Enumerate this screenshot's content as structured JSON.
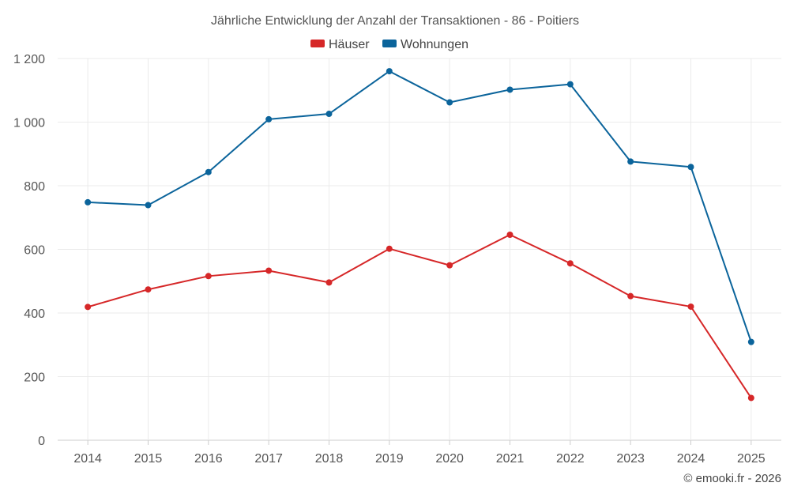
{
  "chart_data": {
    "type": "line",
    "title": "Jährliche Entwicklung der Anzahl der Transaktionen - 86 - Poitiers",
    "xlabel": "",
    "ylabel": "",
    "categories": [
      "2014",
      "2015",
      "2016",
      "2017",
      "2018",
      "2019",
      "2020",
      "2021",
      "2022",
      "2023",
      "2024",
      "2025"
    ],
    "ylim": [
      0,
      1200
    ],
    "yticks": [
      0,
      200,
      400,
      600,
      800,
      1000,
      1200
    ],
    "ytick_labels": [
      "0",
      "200",
      "400",
      "600",
      "800",
      "1 000",
      "1 200"
    ],
    "grid": true,
    "legend_position": "top-center",
    "series": [
      {
        "name": "Häuser",
        "color": "#d62728",
        "values": [
          419,
          474,
          516,
          533,
          496,
          602,
          550,
          646,
          556,
          453,
          420,
          133
        ]
      },
      {
        "name": "Wohnungen",
        "color": "#0b649b",
        "values": [
          748,
          739,
          843,
          1009,
          1026,
          1160,
          1062,
          1102,
          1119,
          876,
          859,
          309
        ]
      }
    ]
  },
  "credit": "© emooki.fr - 2026"
}
